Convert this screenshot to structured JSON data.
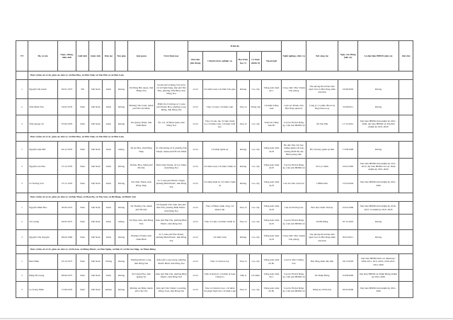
{
  "headers": {
    "tt": "TT",
    "name": "Họ và tên",
    "dob": "Ngày, tháng, năm sinh",
    "gender": "Giới tính",
    "nationality": "Quốc tịch",
    "ethnicity": "Dân tộc",
    "religion": "Tôn giáo",
    "hometown": "Quê quán",
    "residence": "Nơi ở hiện nay",
    "level": "Trình độ",
    "education": "Giáo dục phổ thông",
    "specialty": "Chuyên môn, nghiệp vụ",
    "degree": "Học hàm, học vị",
    "politics": "Lý luận chính trị",
    "language": "Ngoại ngữ",
    "job": "Nghề nghiệp, chức vụ",
    "workplace": "Nơi công tác",
    "party_date": "Ngày vào Đảng (nếu có)",
    "delegate": "Là đại biểu HĐND (nếu có)",
    "note": "Ghi chú"
  },
  "groups": [
    {
      "title": "Đơn vị bầu cử số 20, gồm các đơn vị: xã Phú Hòa, xã Phú Vinh, xã Tân Phú và xã Phú Lâm",
      "rows": [
        [
          "1",
          "Nguyễn Thị Oanh",
          "20/01/1973",
          "Nữ",
          "Việt Nam",
          "Kinh",
          "Không",
          "Xã Đông Bắc Quan, tỉnh Hưng Yên",
          "Số nhà 90/14 Đặng Văn Trơn cư xã Ngân hàng, khu phố Nhị Hòa, phường Trấn Biên, tỉnh Đồng Nai",
          "12/12",
          "Cử nhân Luật, Cử nhân Tôn giáo",
          "Không",
          "Cao cấp",
          "Tiếng Anh trình độ C",
          "Công chức/ Phó Chánh Văn phòng",
          "Văn phòng Đoàn Đại biểu Quốc hội và Hội đồng nhân dân tỉnh",
          "23/06/2002",
          "Không",
          ""
        ],
        [
          "2",
          "Trần Minh Tân",
          "19/03/1976",
          "Nam",
          "Việt Nam",
          "Kinh",
          "Không",
          "Phường Tân Uyên, thành phố Hồ Chí Minh",
          "B300 03-23 đường số 3, khu phố Phước Hòa, phường Long Hưng, tỉnh Đồng Nai",
          "12/12",
          "Thạc sĩ Luật, Cử nhân Luật",
          "Thạc sĩ",
          "Trung cấp",
          "Cử nhân Tiếng Anh",
          "Luật sư/ Thành viên Hội đồng Quản trị",
          "Công ty Cổ phần đầu tư hạ tầng Donacoop",
          "31/08/2011",
          "Không",
          ""
        ],
        [
          "3",
          "Trần Quang Tú",
          "07/04/1976",
          "Nam",
          "Việt Nam",
          "Kinh",
          "Không",
          "Xã Quang Thiện, tỉnh Ninh Bình",
          "Ấp 114, xã Định Quán, tỉnh Đồng Nai",
          "12/12",
          "Thạc sĩ Giáo dục lý luận chính trị, Cử nhân Luật, Cử nhân Triết học",
          "Thạc sĩ",
          "Cao cấp",
          "Trình độ Tiếng Anh B1",
          "Cán bộ/ Bí thư Đảng ủy, Chủ tịch HĐND xã",
          "Xã Tân Phú",
          "17/11/2001",
          "Đại biểu HĐND tỉnh nhiệm kỳ 2021-2026, đại biểu HĐND xã Tân Phú nhiệm kỳ 2021-2026",
          ""
        ]
      ]
    },
    {
      "title": "Đơn vị bầu cử số 21, gồm các đơn vị: xã Phú Hòa, xã Phú Vinh, xã Tân Phú và xã Phú Lâm",
      "rows": [
        [
          "1",
          "Nguyễn Anh Đức",
          "02/12/1976",
          "Nam",
          "Việt Nam",
          "Kinh",
          "không",
          "Xã An Hòa, tỉnh Đồng Tháp",
          "Số 196 đường số 8, phường Tân Thuận, thành phố Hồ Chí Minh",
          "12/12",
          "Cử nhân Quân sự",
          "Không",
          "Cao cấp",
          "Tiếng Anh trình độ B",
          "Bộ đội/ Phó Chỉ huy trưởng kiêm Chỉ huy trưởng BCH Bộ đội Biên phòng tỉnh",
          "Bộ Chỉ huy Quân sự tỉnh",
          "17/08/1999",
          "Không",
          ""
        ],
        [
          "2",
          "Nguyễn Gia Hòa",
          "27/12/1976",
          "Nam",
          "Việt Nam",
          "Kinh",
          "Không",
          "Xã Đào Hòa, thành phố Hà Nội",
          "Thôn Nam Thành, xã Lộc Ninh, tỉnh Đồng Nai",
          "12/12",
          "Cử nhân Luật, Cử nhân Chính trị",
          "Không",
          "Cao cấp",
          "Tiếng Anh trình độ B",
          "Cán bộ/ Bí thư Đảng ủy, Chủ tịch HĐND xã",
          "Xã Lộc Ninh",
          "16/03/1995",
          "Đại biểu HĐND tỉnh nhiệm kỳ 2011-2016, đại biểu HĐND xã Lộc Ninh nhiệm kỳ 2021-2026",
          ""
        ],
        [
          "3",
          "Lê Trường Sơn",
          "27/11/1976",
          "Nam",
          "Việt Nam",
          "Kinh",
          "Không",
          "Xã Châu Thành, tỉnh Đồng Tháp",
          "Tổ 3, khu phố Phước Thuận, phường Bình Phước, tỉnh Đồng Nai",
          "12/12",
          "Cử nhân Kinh tế, Cử nhân Chính trị",
          "Không",
          "Cao cấp",
          "Tiếng Anh trình độ B",
          "Cán bộ/ Phó Chủ tịch",
          "UBND tỉnh",
          "15/03/2004",
          "Đại biểu HĐND tỉnh nhiệm kỳ 2021-2026",
          ""
        ]
      ]
    },
    {
      "title": "Đơn vị bầu cử số 22, gồm các đơn vị: xã Đak Nhau, xã Bom Bo, xã Thọ Sơn, xã Bù Đăng, xã Phước Sơn",
      "rows": [
        [
          "1",
          "Nguyễn Minh Hào",
          "30/04/1972",
          "Nam",
          "Việt Nam",
          "Kinh",
          "Không",
          "Xã Thường Tín, thành phố Hà Nội",
          "03 Nguyễn Văn Linh, khu phố Phú Tân, phường Bình Phước, tỉnh Đồng Nai",
          "12/12",
          "Thạc sĩ Hành chính công, Cử nhân Luật",
          "Thạc sĩ",
          "Cao cấp",
          "Tiếng Anh trình độ B",
          "Cán bộ/Trưởng ban",
          "Ban Nội chính Tỉnh ủy",
          "10/04/1996",
          "Đại biểu HĐND tỉnh nhiệm kỳ 2016-2021 và nhiệm kỳ 2021-2026",
          ""
        ],
        [
          "2",
          "Vũ Lương",
          "26/05/1975",
          "Nam",
          "Việt Nam",
          "Kinh",
          "không",
          "Xã Thụy Anh, tỉnh Hưng Yên",
          "Khu phố Phú Tân, phường Bình Phước, tỉnh Đồng Nai",
          "12/12",
          "Thạc sĩ Luật, Cử nhân Chính trị",
          "Thạc sĩ",
          "Cao cấp",
          "Tiếng Anh trình độ B",
          "Cán bộ/ Bí thư Đảng ủy, Chủ tịch HĐND xã",
          "Xã Bù Đăng",
          "07/11/2003",
          "Không",
          ""
        ],
        [
          "3",
          "Nguyễn Văn Nguyện",
          "06/02/1984",
          "Nam",
          "Việt Nam",
          "Kinh",
          "Không",
          "Phường Tế Khê, tỉnh Ninh Bình",
          "Tổ 5, khu phố Phú Thanh, phường Bình Phước, tỉnh Đồng Nai",
          "12/12",
          "Cử nhân Luật",
          "Không",
          "Cao cấp",
          "Tiếng Anh trình độ B",
          "Công chức/ Phó Chánh Văn phòng",
          "Văn phòng Đoàn Đại biểu Quốc hội và Hội đồng nhân dân tỉnh",
          "30/03/2011",
          "Không",
          ""
        ]
      ]
    },
    {
      "title": "Đơn vị bầu cử số 23, gồm các đơn vị: xã Đa Kia, xã Hưng Phước, xã Phú Nghĩa, xã Đăk Ơ, xã Bù Gia Mập, xã Thiện Hưng",
      "rows": [
        [
          "1",
          "Điểu Điều",
          "01/10/1973",
          "Nam",
          "Việt Nam",
          "S'tiêng",
          "Không",
          "Phường Phước Long, tỉnh Đồng Nai",
          "Khu phố Long Giang, phường Phước Bình, tỉnh Đồng Nai",
          "12/12",
          "Thạc sĩ văn hóa học",
          "Thạc sĩ",
          "Cao cấp",
          "Tiếng Anh trình độ B1",
          "Cán bộ/ Phó Trưởng ban",
          "Hội đồng nhân dân tỉnh",
          "18/12/2003",
          "Đại biểu HĐND tỉnh các nhiệm kỳ: 2004-2011, 2011-2016, 2016-2021, 2021-2026",
          ""
        ],
        [
          "2",
          "Đặng Hà Giang",
          "06/09/1975",
          "Nam",
          "Việt Nam",
          "Kinh",
          "Không",
          "Xã Tuyên Hóa, tỉnh Quảng Trị",
          "Khu phố Phú Tân, phường Bình Phước, tỉnh Đồng Nai",
          "12/12",
          "Tiến sĩ Kinh tế, Cử nhân lý luận Chính trị",
          "Tiến sĩ",
          "Cử nhân",
          "Tiếng Anh trình độ C",
          "Cán bộ/ Bí thư Đảng ủy, Chủ tịch HĐND xã",
          "Xã Thiện Hưng",
          "10/08/2000",
          "Đại biểu HĐND xã Thiện Hưng nhiệm kỳ 2021-2026",
          ""
        ],
        [
          "3",
          "Lý Trung Nhân",
          "17/09/1976",
          "Nam",
          "Việt Nam",
          "Khmer",
          "Không",
          "Phường An Bình, thành phố Cần Thơ",
          "Khu phố Tân Thành 3, phường Đồng Xoài, tỉnh Đồng Nai",
          "12/12",
          "Thạc sĩ Chính trị học, Cử nhân Sư phạm Ngữ văn, Cử nhân Luật",
          "Thạc sĩ",
          "Cao cấp",
          "Tiếng Anh trình độ B1",
          "Cán bộ/ Bí thư Đảng ủy, Chủ tịch HĐND xã",
          "Đảng ủy xã Đa Kia",
          "29/03/2006",
          "Đại biểu HĐND tỉnh nhiệm kỳ 2021-2026",
          ""
        ]
      ]
    }
  ]
}
